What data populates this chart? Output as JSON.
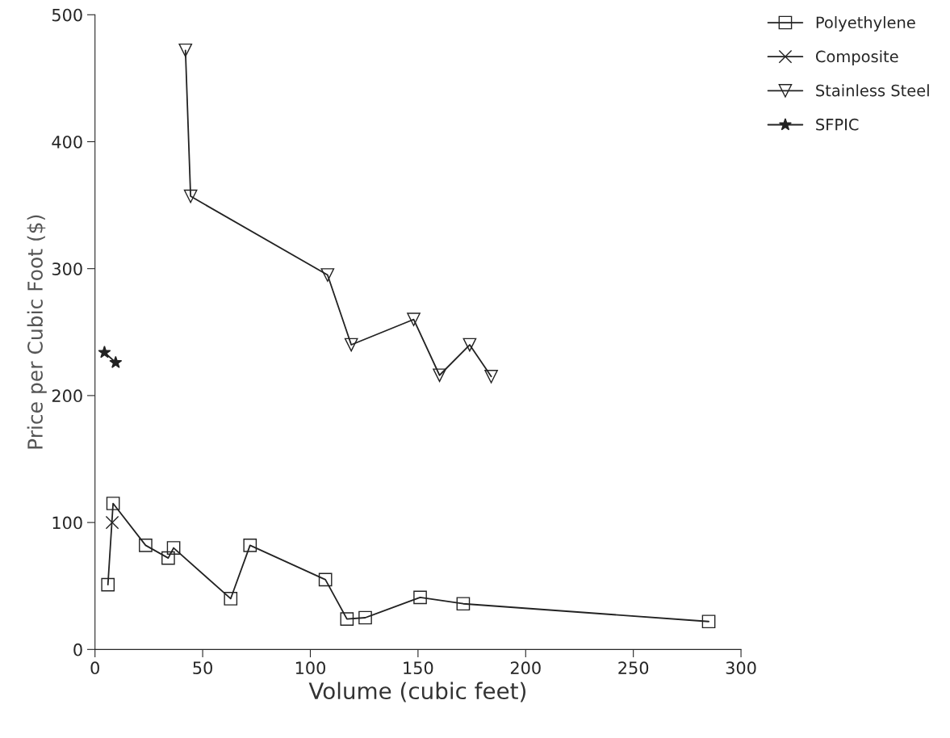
{
  "chart_data": {
    "type": "line",
    "xlabel": "Volume (cubic feet)",
    "ylabel": "Price per Cubic Foot ($)",
    "xlim": [
      0,
      300
    ],
    "xticks": [
      0,
      50,
      100,
      150,
      200,
      250,
      300
    ],
    "ylim": [
      0,
      500
    ],
    "yticks": [
      0,
      100,
      200,
      300,
      400,
      500
    ],
    "grid": false,
    "legend": "top right",
    "line_style": "solid",
    "series": [
      {
        "name": "Polyethylene",
        "color": "#222222",
        "marker": "square",
        "x": [
          6,
          8.4,
          23.5,
          34,
          36.5,
          63,
          72,
          107,
          117,
          125.5,
          151,
          171,
          285
        ],
        "values": [
          51,
          115,
          82,
          72,
          80,
          40,
          82,
          55,
          24,
          25,
          41,
          36,
          22
        ]
      },
      {
        "name": "Composite",
        "color": "#222222",
        "marker": "cross",
        "x": [
          8
        ],
        "values": [
          100
        ]
      },
      {
        "name": "Stainless Steel",
        "color": "#222222",
        "marker": "triangle",
        "x": [
          42,
          44.4,
          108,
          119,
          148,
          160,
          174,
          184
        ],
        "values": [
          472,
          357,
          295,
          240,
          260,
          216,
          240,
          215
        ]
      },
      {
        "name": "SFPIC",
        "color": "#222222",
        "marker": "star",
        "x": [
          4.4,
          9.6
        ],
        "values": [
          234,
          226
        ]
      }
    ]
  }
}
